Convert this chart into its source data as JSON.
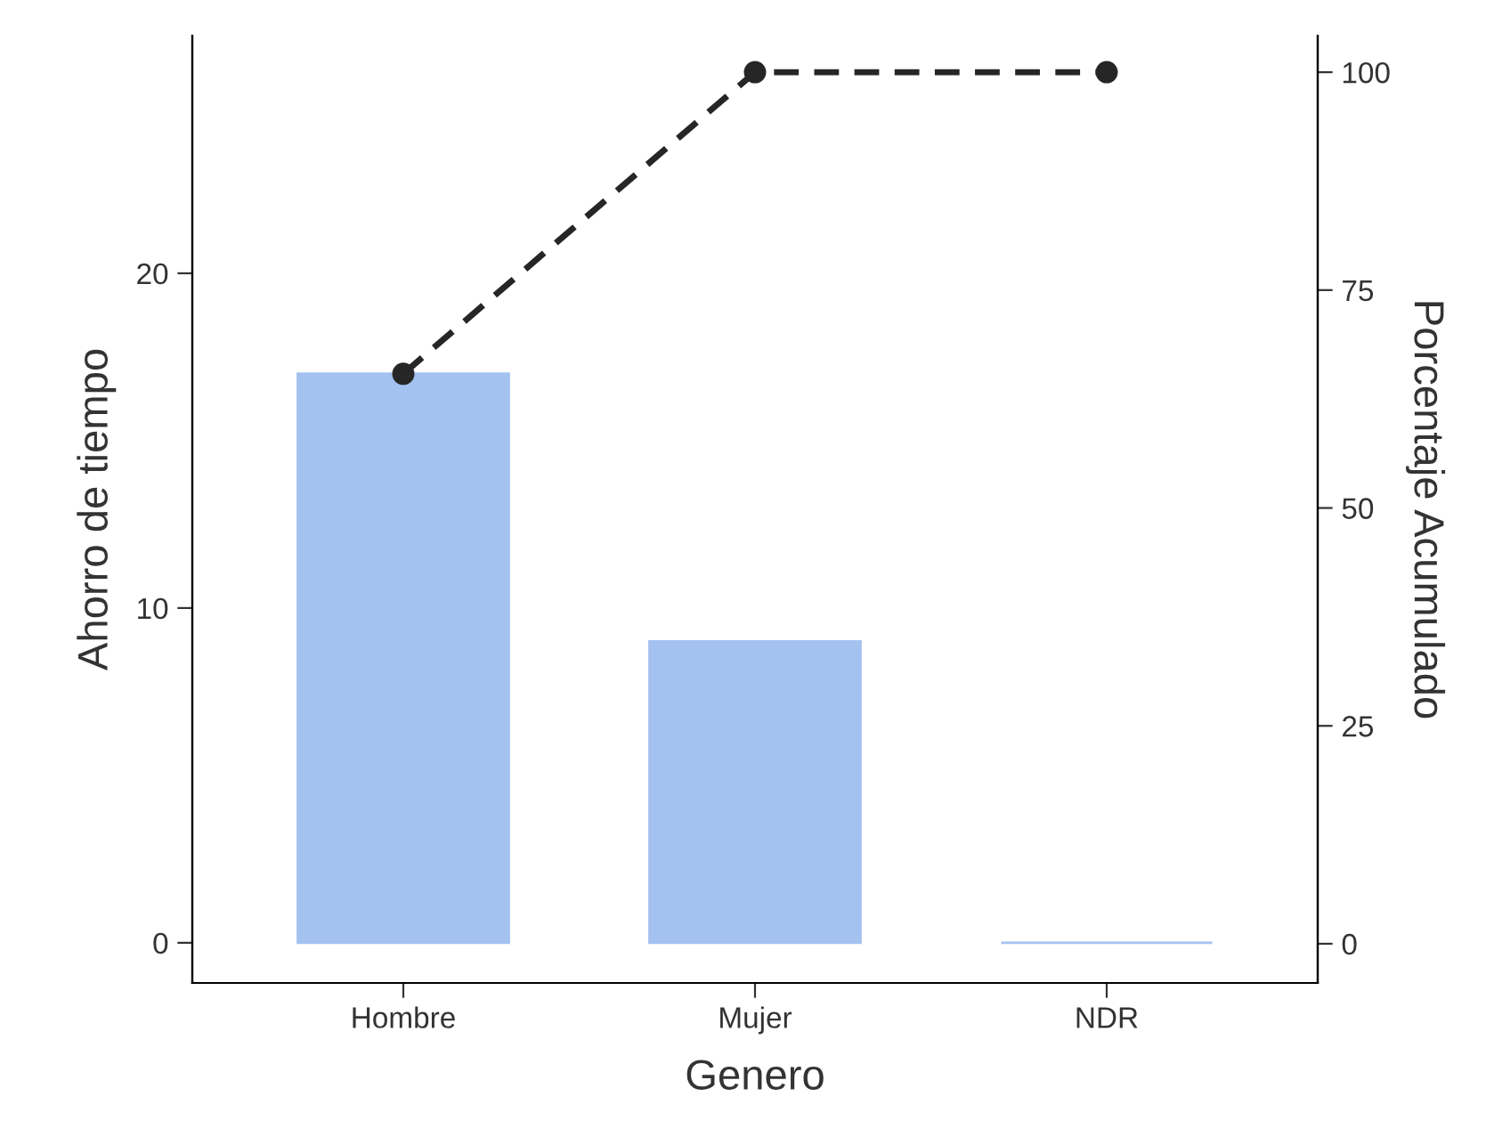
{
  "chart_data": {
    "type": "bar",
    "xlabel": "Genero",
    "ylabel": "Ahorro de tiempo",
    "y2label": "Porcentaje Acumulado",
    "categories": [
      "Hombre",
      "Mujer",
      "NDR"
    ],
    "series": [
      {
        "color": "#a4c2f0",
        "values": [
          17,
          9,
          0
        ]
      },
      {
        "type": "line",
        "axis": "y2",
        "color": "#262626",
        "values": [
          65.4,
          100,
          100
        ],
        "marker": "circle",
        "line_style": "dashed"
      }
    ],
    "ylim": [
      -1.2,
      27.1
    ],
    "yticks": [
      0,
      10,
      20
    ],
    "y2lim": [
      -4.5,
      104.2
    ],
    "y2ticks": [
      0,
      25,
      50,
      75,
      100
    ],
    "grid": false,
    "legend": false
  }
}
